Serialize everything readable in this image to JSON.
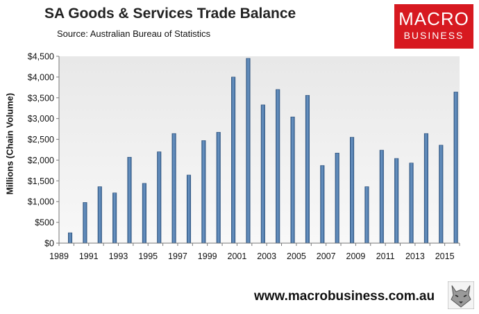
{
  "header": {
    "title": "SA Goods & Services Trade Balance",
    "subtitle": "Source:  Australian Bureau of Statistics"
  },
  "logo": {
    "line1": "MACRO",
    "line2": "BUSINESS",
    "color": "#d71920"
  },
  "footer": {
    "url": "www.macrobusiness.com.au",
    "icon": "wolf-icon"
  },
  "colors": {
    "bar": "#4f79a7",
    "bar_edge": "#2d4f78",
    "plot_bg": "#ececec"
  },
  "chart_data": {
    "type": "bar",
    "title": "SA Goods & Services Trade Balance",
    "ylabel": "Millions (Chain Volume)",
    "xlabel": "",
    "ylim": [
      0,
      4500
    ],
    "xlim": [
      1989,
      2016
    ],
    "grid": false,
    "legend": "none",
    "y_ticks": [
      "$0",
      "$500",
      "$1,000",
      "$1,500",
      "$2,000",
      "$2,500",
      "$3,000",
      "$3,500",
      "$4,000",
      "$4,500"
    ],
    "y_tick_values": [
      0,
      500,
      1000,
      1500,
      2000,
      2500,
      3000,
      3500,
      4000,
      4500
    ],
    "x_ticks": [
      "1989",
      "1991",
      "1993",
      "1995",
      "1997",
      "1999",
      "2001",
      "2003",
      "2005",
      "2007",
      "2009",
      "2011",
      "2013",
      "2015"
    ],
    "x_tick_values": [
      1989,
      1991,
      1993,
      1995,
      1997,
      1999,
      2001,
      2003,
      2005,
      2007,
      2009,
      2011,
      2013,
      2015
    ],
    "x": [
      1989.75,
      1990.75,
      1991.75,
      1992.75,
      1993.75,
      1994.75,
      1995.75,
      1996.75,
      1997.75,
      1998.75,
      1999.75,
      2000.75,
      2001.75,
      2002.75,
      2003.75,
      2004.75,
      2005.75,
      2006.75,
      2007.75,
      2008.75,
      2009.75,
      2010.75,
      2011.75,
      2012.75,
      2013.75,
      2014.75,
      2015.75
    ],
    "values": [
      250,
      980,
      1360,
      1210,
      2070,
      1440,
      2200,
      2640,
      1640,
      2470,
      2670,
      4000,
      4450,
      3330,
      3700,
      3040,
      3560,
      1870,
      2170,
      2550,
      1360,
      2240,
      2040,
      1930,
      2640,
      2360,
      3640
    ]
  }
}
